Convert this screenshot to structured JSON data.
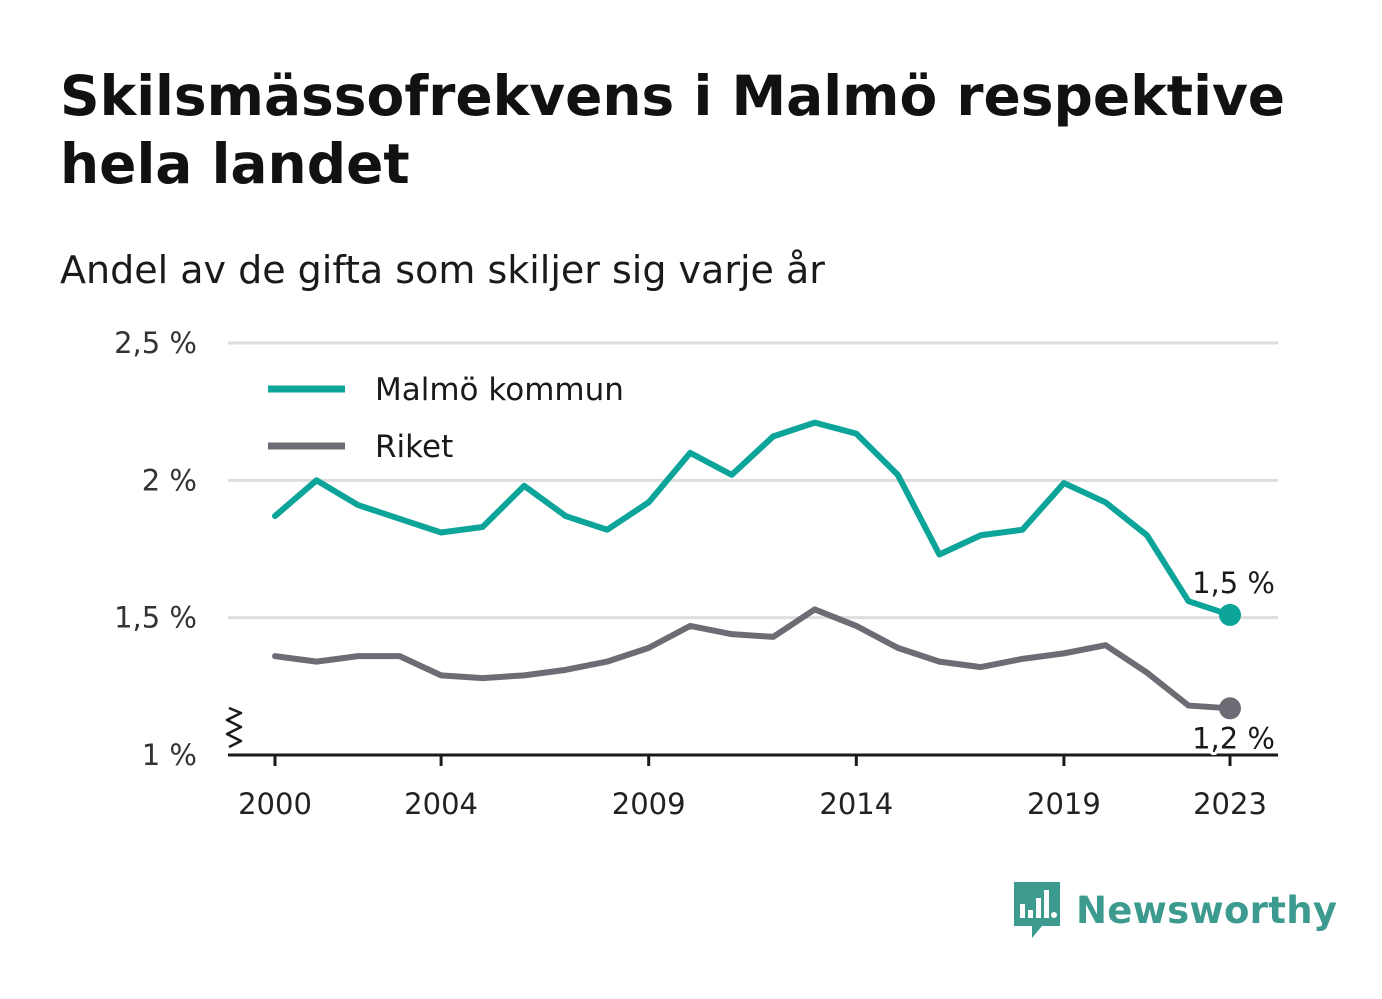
{
  "header": {
    "title": "Skilsmässofrekvens i Malmö respektive hela landet",
    "subtitle": "Andel av de gifta som skiljer sig varje år"
  },
  "brand": {
    "name": "Newsworthy",
    "color": "#3d9a8f"
  },
  "chart_data": {
    "type": "line",
    "title": "Skilsmässofrekvens i Malmö respektive hela landet",
    "subtitle": "Andel av de gifta som skiljer sig varje år",
    "x": [
      2000,
      2001,
      2002,
      2003,
      2004,
      2005,
      2006,
      2007,
      2008,
      2009,
      2010,
      2011,
      2012,
      2013,
      2014,
      2015,
      2016,
      2017,
      2018,
      2019,
      2020,
      2021,
      2022,
      2023
    ],
    "series": [
      {
        "name": "Malmö kommun",
        "color": "#0da499",
        "values": [
          1.87,
          2.0,
          1.91,
          1.86,
          1.81,
          1.83,
          1.98,
          1.87,
          1.82,
          1.92,
          2.1,
          2.02,
          2.16,
          2.21,
          2.17,
          2.02,
          1.73,
          1.8,
          1.82,
          1.99,
          1.92,
          1.8,
          1.56,
          1.51
        ],
        "end_label": "1,5 %"
      },
      {
        "name": "Riket",
        "color": "#6d6c74",
        "values": [
          1.36,
          1.34,
          1.36,
          1.36,
          1.29,
          1.28,
          1.29,
          1.31,
          1.34,
          1.39,
          1.47,
          1.44,
          1.43,
          1.53,
          1.47,
          1.39,
          1.34,
          1.32,
          1.35,
          1.37,
          1.4,
          1.3,
          1.18,
          1.17
        ],
        "end_label": "1,2 %"
      }
    ],
    "y_ticks": [
      {
        "value": 1.0,
        "label": "1 %"
      },
      {
        "value": 1.5,
        "label": "1,5 %"
      },
      {
        "value": 2.0,
        "label": "2 %"
      },
      {
        "value": 2.5,
        "label": "2,5 %"
      }
    ],
    "x_ticks": [
      {
        "value": 2000,
        "label": "2000"
      },
      {
        "value": 2004,
        "label": "2004"
      },
      {
        "value": 2009,
        "label": "2009"
      },
      {
        "value": 2014,
        "label": "2014"
      },
      {
        "value": 2019,
        "label": "2019"
      },
      {
        "value": 2023,
        "label": "2023"
      }
    ],
    "ylim": [
      1.0,
      2.5
    ],
    "xlim": [
      2000,
      2023
    ],
    "y_axis_break": true,
    "grid": true,
    "legend_position": "top-left"
  }
}
